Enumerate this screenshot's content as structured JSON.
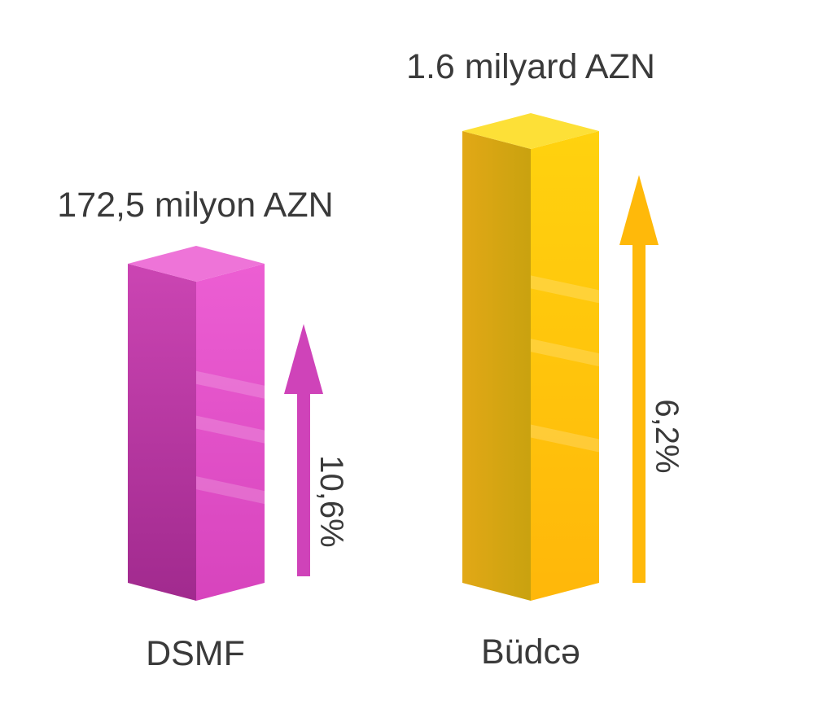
{
  "chart_data": {
    "type": "bar",
    "categories": [
      "DSMF",
      "Büdcə"
    ],
    "series": [
      {
        "values": [
          172.5,
          1600
        ],
        "value_labels": [
          "172,5 milyon AZN",
          "1.6 milyard AZN"
        ],
        "growth_labels": [
          "10,6%",
          "6,2%"
        ]
      }
    ],
    "colors": {
      "DSMF": {
        "top": "#ee74d8",
        "left": "#c13aaa",
        "right": "#e75bcf",
        "arrow": "#cf43b9"
      },
      "Büdcə": {
        "top": "#fde037",
        "left": "#dca316",
        "right": "#ffc80f",
        "arrow": "#ffb90a"
      }
    },
    "title": "",
    "xlabel": "",
    "ylabel": "",
    "grid": false,
    "legend": "none"
  }
}
